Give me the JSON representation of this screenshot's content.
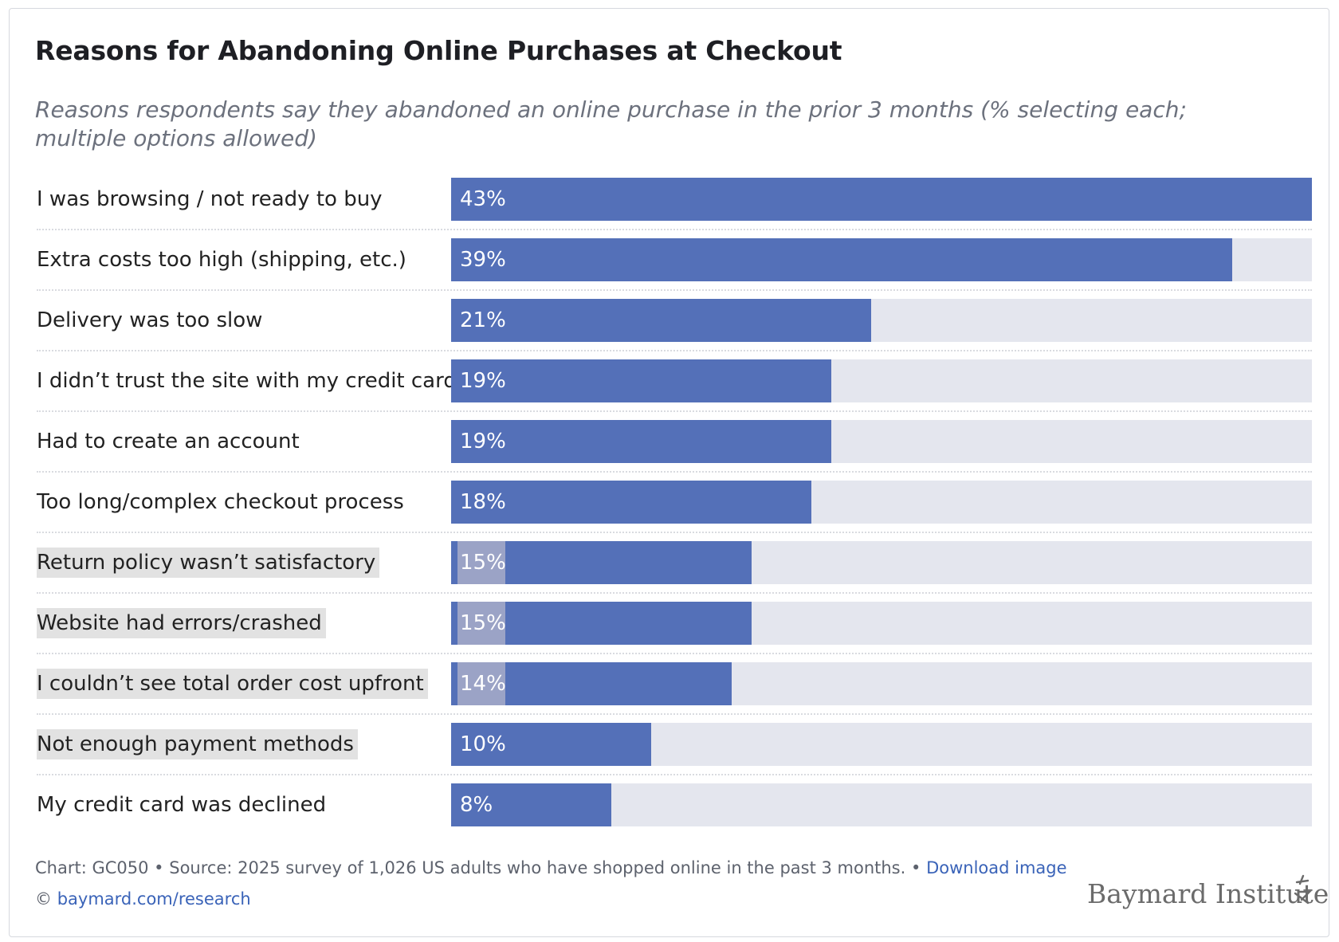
{
  "title": "Reasons for Abandoning Online Purchases at Checkout",
  "subtitle": "Reasons respondents say they abandoned an online purchase in the prior 3 months (% selecting each; multiple options allowed)",
  "colors": {
    "bar": "#5470b8",
    "track": "#e4e6ee",
    "highlight_tag": "#9ba3c6",
    "label_highlight": "#e2e2e2"
  },
  "chart_data": {
    "type": "bar",
    "orientation": "horizontal",
    "title": "Reasons for Abandoning Online Purchases at Checkout",
    "xlim": [
      0,
      43
    ],
    "categories": [
      "I was browsing / not ready to buy",
      "Extra costs too high (shipping, etc.)",
      "Delivery was too slow",
      "I didn’t trust the site with my credit card",
      "Had to create an account",
      "Too long/complex checkout process",
      "Return policy wasn’t satisfactory",
      "Website had errors/crashed",
      "I couldn’t see total order cost upfront",
      "Not enough payment methods",
      "My credit card was declined"
    ],
    "values": [
      43,
      39,
      21,
      19,
      19,
      18,
      15,
      15,
      14,
      10,
      8
    ],
    "value_labels": [
      "43%",
      "39%",
      "21%",
      "19%",
      "19%",
      "18%",
      "15%",
      "15%",
      "14%",
      "10%",
      "8%"
    ],
    "label_highlighted": [
      false,
      false,
      false,
      false,
      false,
      false,
      true,
      true,
      true,
      true,
      false
    ],
    "value_tag_highlighted": [
      false,
      false,
      false,
      false,
      false,
      false,
      true,
      true,
      true,
      false,
      false
    ]
  },
  "footer": {
    "chart_id": "Chart: GC050",
    "separator": "•",
    "source": "Source: 2025 survey of 1,026 US adults who have shopped online in the past 3 months.",
    "download_link": "Download image",
    "copyright_symbol": "©",
    "site_link": "baymard.com/research"
  },
  "logo": {
    "text": "Baymard Institute"
  }
}
